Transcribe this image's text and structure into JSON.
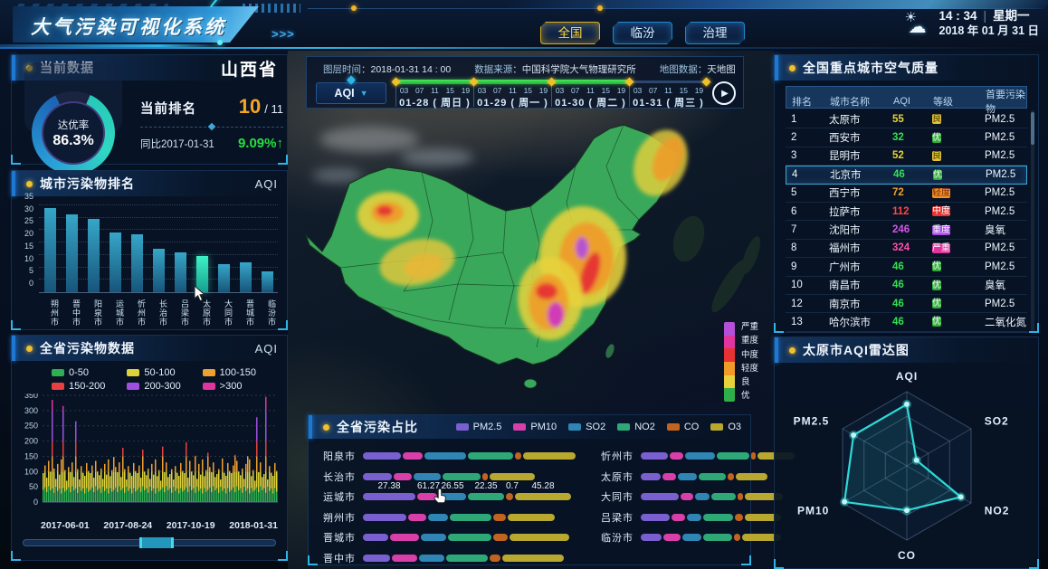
{
  "header": {
    "title": "大气污染可视化系统",
    "arrows": ">>>",
    "tabs": [
      {
        "label": "全国",
        "active": true
      },
      {
        "label": "临汾",
        "active": false
      },
      {
        "label": "治理",
        "active": false
      }
    ],
    "clock": {
      "time": "14 : 34",
      "weekday": "星期一",
      "date": "2018 年 01 月 31 日",
      "weather_icon": "sun-cloud-icon"
    }
  },
  "left": {
    "current": {
      "title": "当前数据",
      "region": "山西省",
      "gauge_label": "达优率",
      "gauge_value": "86.3%",
      "gauge_percent": 86.3,
      "rank_label": "当前排名",
      "rank_value": "10",
      "rank_total": "/ 11",
      "yoy_label": "同比2017-01-31",
      "yoy_value": "9.09%",
      "yoy_arrow": "↑"
    },
    "city_rank_title": "城市污染物排名",
    "city_rank_unit": "AQI",
    "series_title": "全省污染物数据",
    "series_unit": "AQI"
  },
  "map": {
    "info": {
      "layer_time_label": "图层时间：",
      "layer_time": "2018-01-31  14 : 00",
      "source_label": "数据来源：",
      "source": "中国科学院大气物理研究所",
      "basemap_label": "地图数据：",
      "basemap": "天地图"
    },
    "metric": "AQI",
    "timeline": {
      "hours": [
        "03",
        "07",
        "11",
        "15",
        "19"
      ],
      "days": [
        {
          "date": "01-28",
          "week": "周日",
          "progress": 1
        },
        {
          "date": "01-29",
          "week": "周一",
          "progress": 1
        },
        {
          "date": "01-30",
          "week": "周二",
          "progress": 1
        },
        {
          "date": "01-31",
          "week": "周三",
          "progress": 0
        }
      ]
    },
    "legend": [
      {
        "label": "严重",
        "color": "#b44fd8"
      },
      {
        "label": "重度",
        "color": "#e0359f"
      },
      {
        "label": "中度",
        "color": "#e63232"
      },
      {
        "label": "轻度",
        "color": "#f09a28"
      },
      {
        "label": "良",
        "color": "#e8d23c"
      },
      {
        "label": "优",
        "color": "#2fae4a"
      }
    ]
  },
  "right": {
    "table_title": "全国重点城市空气质量",
    "radar_title": "太原市AQI雷达图"
  },
  "share_title": "全省污染占比",
  "level_badge_colors": {
    "优": "#2fae3a",
    "良": "#e0c232",
    "轻度": "#ef9226",
    "中度": "#e63232",
    "重度": "#a449e0",
    "严重": "#e0359f"
  },
  "badge_text_colors": {
    "良": "#4a3c00",
    "轻度": "#7a2410"
  },
  "aqi_text_colors": {
    "优": "#35e052",
    "良": "#e8d23c",
    "轻度": "#f5a028",
    "中度": "#ff4545",
    "重度": "#d455e8",
    "严重": "#ff4fae"
  },
  "chart_data": [
    {
      "id": "city_rank_bar",
      "type": "bar",
      "title": "城市污染物排名",
      "unit": "AQI",
      "categories": [
        "朔州市",
        "晋中市",
        "阳泉市",
        "运城市",
        "忻州市",
        "长治市",
        "吕梁市",
        "太原市",
        "大同市",
        "晋城市",
        "临汾市"
      ],
      "values": [
        34,
        31.5,
        29.5,
        24,
        23.5,
        17.5,
        16,
        14.5,
        11.5,
        12,
        8.5
      ],
      "highlight_index": 7,
      "ylim": [
        0,
        35
      ],
      "yticks": [
        0,
        5,
        10,
        15,
        20,
        25,
        30,
        35
      ]
    },
    {
      "id": "province_series",
      "type": "bar",
      "title": "全省污染物数据",
      "unit": "AQI",
      "ylim": [
        0,
        350
      ],
      "yticks": [
        0,
        50,
        100,
        150,
        200,
        250,
        300,
        350
      ],
      "xticks": [
        "2017-06-01",
        "2017-08-24",
        "2017-10-19",
        "2018-01-31"
      ],
      "bands": [
        {
          "label": "0-50",
          "color": "#2fae52",
          "min": 0,
          "max": 50
        },
        {
          "label": "50-100",
          "color": "#ded23a",
          "min": 50,
          "max": 100
        },
        {
          "label": "100-150",
          "color": "#f0a030",
          "min": 100,
          "max": 150
        },
        {
          "label": "150-200",
          "color": "#e84040",
          "min": 150,
          "max": 200
        },
        {
          "label": "200-300",
          "color": "#a050e0",
          "min": 200,
          "max": 300
        },
        {
          "label": ">300",
          "color": "#e0359f",
          "min": 300,
          "max": 400
        }
      ],
      "green_base_pattern": [
        40,
        48,
        32,
        52,
        38,
        45,
        30,
        50,
        36,
        44,
        28,
        46,
        34
      ],
      "values": [
        95,
        120,
        80,
        135,
        100,
        335,
        110,
        76,
        125,
        90,
        140,
        315,
        105,
        70,
        115,
        98,
        130,
        82,
        265,
        108,
        74,
        118,
        96,
        86,
        128,
        102,
        95,
        120,
        80,
        135,
        100,
        88,
        110,
        76,
        125,
        90,
        140,
        85,
        105,
        148,
        115,
        98,
        130,
        82,
        178,
        108,
        74,
        118,
        96,
        86,
        128,
        102,
        95,
        120,
        80,
        172,
        100,
        88,
        110,
        76,
        125,
        90,
        140,
        85,
        105,
        70,
        182,
        98,
        130,
        82,
        92,
        108,
        74,
        118,
        96,
        86,
        128,
        102,
        95,
        196,
        80,
        135,
        100,
        88,
        152,
        76,
        125,
        90,
        140,
        85,
        105,
        162,
        115,
        98,
        130,
        82,
        92,
        108,
        74,
        143,
        96,
        86,
        128,
        102,
        95,
        120,
        155,
        135,
        100,
        88,
        110,
        76,
        125,
        150,
        140,
        85,
        105,
        70,
        278,
        98,
        130,
        82,
        92,
        345,
        74,
        118,
        96,
        86,
        128,
        102
      ]
    },
    {
      "id": "pollution_share",
      "type": "bar",
      "title": "全省污染占比",
      "legend": [
        {
          "label": "PM2.5",
          "color": "#7a5fd0"
        },
        {
          "label": "PM10",
          "color": "#d83fa8"
        },
        {
          "label": "SO2",
          "color": "#2f86b4"
        },
        {
          "label": "NO2",
          "color": "#2fa878"
        },
        {
          "label": "CO",
          "color": "#c2641f"
        },
        {
          "label": "O3",
          "color": "#b8a82f"
        }
      ],
      "label_row": "运城市",
      "label_values": [
        "27.38",
        "61.27",
        "26.55",
        "22.35",
        "0.7",
        "45.28"
      ],
      "left_rows": [
        {
          "city": "阳泉市",
          "values": [
            42,
            22,
            46,
            50,
            7,
            58
          ]
        },
        {
          "city": "长治市",
          "values": [
            32,
            20,
            30,
            42,
            6,
            50
          ]
        },
        {
          "city": "运城市",
          "values": [
            58,
            22,
            30,
            40,
            8,
            62
          ]
        },
        {
          "city": "朔州市",
          "values": [
            48,
            20,
            22,
            46,
            14,
            52
          ]
        },
        {
          "city": "晋城市",
          "values": [
            28,
            32,
            28,
            48,
            16,
            66
          ]
        },
        {
          "city": "晋中市",
          "values": [
            30,
            28,
            28,
            46,
            12,
            68
          ]
        }
      ],
      "right_rows": [
        {
          "city": "忻州市",
          "values": [
            42,
            20,
            46,
            50,
            8,
            56
          ]
        },
        {
          "city": "太原市",
          "values": [
            30,
            22,
            28,
            42,
            10,
            48
          ]
        },
        {
          "city": "大同市",
          "values": [
            58,
            20,
            22,
            38,
            8,
            58
          ]
        },
        {
          "city": "吕梁市",
          "values": [
            44,
            22,
            22,
            46,
            12,
            56
          ]
        },
        {
          "city": "临汾市",
          "values": [
            32,
            26,
            30,
            44,
            10,
            60
          ]
        }
      ]
    },
    {
      "id": "city_air_table",
      "type": "table",
      "title": "全国重点城市空气质量",
      "columns": [
        "排名",
        "城市名称",
        "AQI",
        "等级",
        "首要污染物"
      ],
      "rows": [
        {
          "rank": "1",
          "city": "太原市",
          "aqi": "55",
          "level": "良",
          "pollutant": "PM2.5",
          "selected": false
        },
        {
          "rank": "2",
          "city": "西安市",
          "aqi": "32",
          "level": "优",
          "pollutant": "PM2.5",
          "selected": false
        },
        {
          "rank": "3",
          "city": "昆明市",
          "aqi": "52",
          "level": "良",
          "pollutant": "PM2.5",
          "selected": false
        },
        {
          "rank": "4",
          "city": "北京市",
          "aqi": "46",
          "level": "优",
          "pollutant": "PM2.5",
          "selected": true
        },
        {
          "rank": "5",
          "city": "西宁市",
          "aqi": "72",
          "level": "轻度",
          "pollutant": "PM2.5",
          "selected": false
        },
        {
          "rank": "6",
          "city": "拉萨市",
          "aqi": "112",
          "level": "中度",
          "pollutant": "PM2.5",
          "selected": false
        },
        {
          "rank": "7",
          "city": "沈阳市",
          "aqi": "246",
          "level": "重度",
          "pollutant": "臭氧",
          "selected": false
        },
        {
          "rank": "8",
          "city": "福州市",
          "aqi": "324",
          "level": "严重",
          "pollutant": "PM2.5",
          "selected": false
        },
        {
          "rank": "9",
          "city": "广州市",
          "aqi": "46",
          "level": "优",
          "pollutant": "PM2.5",
          "selected": false
        },
        {
          "rank": "10",
          "city": "南昌市",
          "aqi": "46",
          "level": "优",
          "pollutant": "臭氧",
          "selected": false
        },
        {
          "rank": "12",
          "city": "南京市",
          "aqi": "46",
          "level": "优",
          "pollutant": "PM2.5",
          "selected": false
        },
        {
          "rank": "13",
          "city": "哈尔滨市",
          "aqi": "46",
          "level": "优",
          "pollutant": "二氧化氮",
          "selected": false
        }
      ]
    },
    {
      "id": "taiyuan_radar",
      "type": "radar",
      "title": "太原市AQI雷达图",
      "axes": [
        "AQI",
        "SO2",
        "NO2",
        "CO",
        "PM10",
        "PM2.5"
      ],
      "values_percent": [
        83,
        15,
        84,
        60,
        97,
        83
      ],
      "levels": 3,
      "line_color": "#2fd8d8"
    }
  ]
}
